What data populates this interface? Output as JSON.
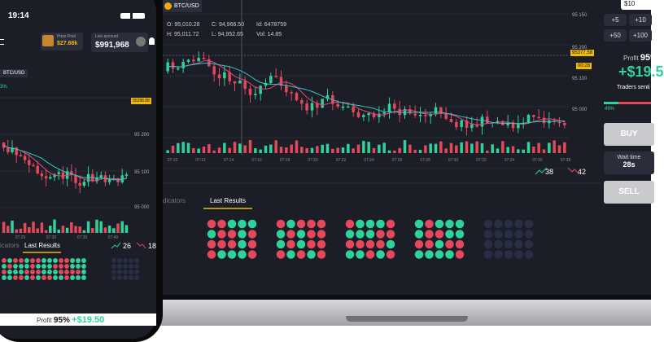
{
  "phone": {
    "time": "19:14",
    "prize_label": "Prize Pool",
    "prize": "$27.68k",
    "account_label": "Live account",
    "balance": "$991,968",
    "pair": "BTC/USD",
    "change": "3%",
    "price_tag": "95288.88",
    "price_axis": [
      "95 200",
      "95 100",
      "95 000"
    ],
    "time_axis": [
      "07:25",
      "07:30",
      "07:35",
      "07:40"
    ],
    "tabs": [
      "icators",
      "Last Results"
    ],
    "up": "26",
    "down": "18",
    "profit_label": "Profit",
    "profit_pct": "95%",
    "profit": "+$19.50"
  },
  "laptop": {
    "pair": "BTC/USD",
    "ohlc": [
      "O: 95,010.28",
      "C: 94,966.50",
      "Id: 6478759",
      "H: 95,011.72",
      "L: 94,952.65",
      "Vol: 14.85"
    ],
    "price_axis": [
      "95 150",
      "95 200",
      "95 100",
      "95 000"
    ],
    "price_tag": "95377.58",
    "timer_tag": "00:28",
    "time_axis": [
      "07:10",
      "07:12",
      "07:14",
      "07:16",
      "07:18",
      "07:20",
      "07:22",
      "07:24",
      "07:26",
      "07:28",
      "07:30",
      "07:32",
      "07:34",
      "07:36",
      "07:38"
    ],
    "up": "38",
    "down": "42",
    "tabs": [
      "dicators",
      "Last Results"
    ],
    "panel": {
      "amount": "$10",
      "steps": [
        "+5",
        "+10",
        "+50",
        "+100"
      ],
      "profit_label": "Profit",
      "profit_pct": "95%",
      "profit": "+$19.5",
      "sentiment_label": "Traders senti",
      "sentiment": "49%",
      "buy": "BUY",
      "wait_label": "Wait time",
      "wait": "28s",
      "sell": "SELL"
    }
  }
}
